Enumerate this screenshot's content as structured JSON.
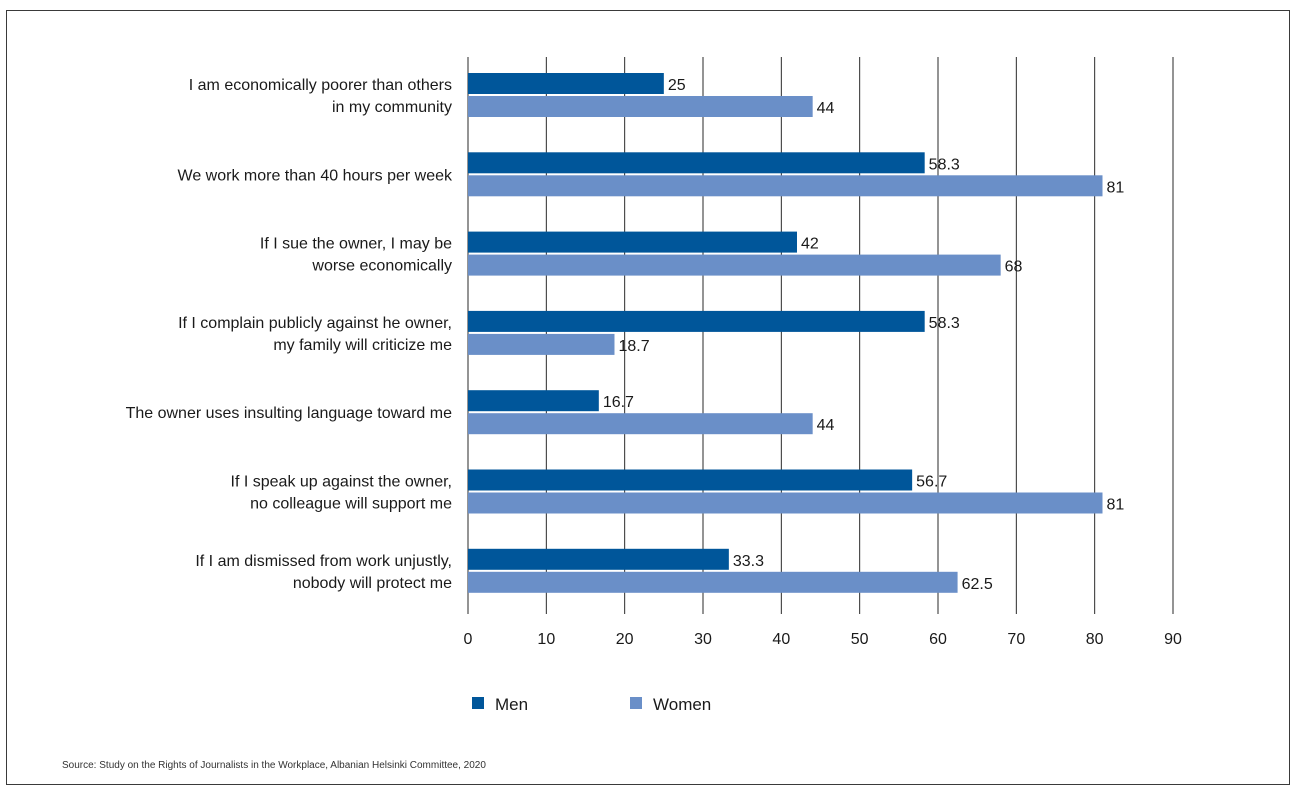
{
  "chart_data": {
    "type": "bar",
    "orientation": "horizontal",
    "categories": [
      [
        "I am economically poorer than others",
        "in my community"
      ],
      [
        "We work more than 40 hours per week"
      ],
      [
        "If I sue the owner, I may be",
        "worse economically"
      ],
      [
        "If I complain publicly against he owner,",
        "my family will criticize me"
      ],
      [
        "The owner uses insulting language toward me"
      ],
      [
        "If I speak up against the owner,",
        "no colleague will support me"
      ],
      [
        "If I am dismissed from work unjustly,",
        "nobody will protect me"
      ]
    ],
    "series": [
      {
        "name": "Men",
        "color": "#00569a",
        "values": [
          25,
          58.3,
          42,
          58.3,
          16.7,
          56.7,
          33.3
        ]
      },
      {
        "name": "Women",
        "color": "#6a8fc8",
        "values": [
          44,
          81,
          68,
          18.7,
          44,
          81,
          62.5
        ]
      }
    ],
    "xlim": [
      0,
      90
    ],
    "xticks": [
      0,
      10,
      20,
      30,
      40,
      50,
      60,
      70,
      80,
      90
    ],
    "grid": "vertical",
    "legend_position": "bottom"
  },
  "source_text": "Source: Study on the Rights of Journalists in the Workplace, Albanian Helsinki Committee, 2020"
}
